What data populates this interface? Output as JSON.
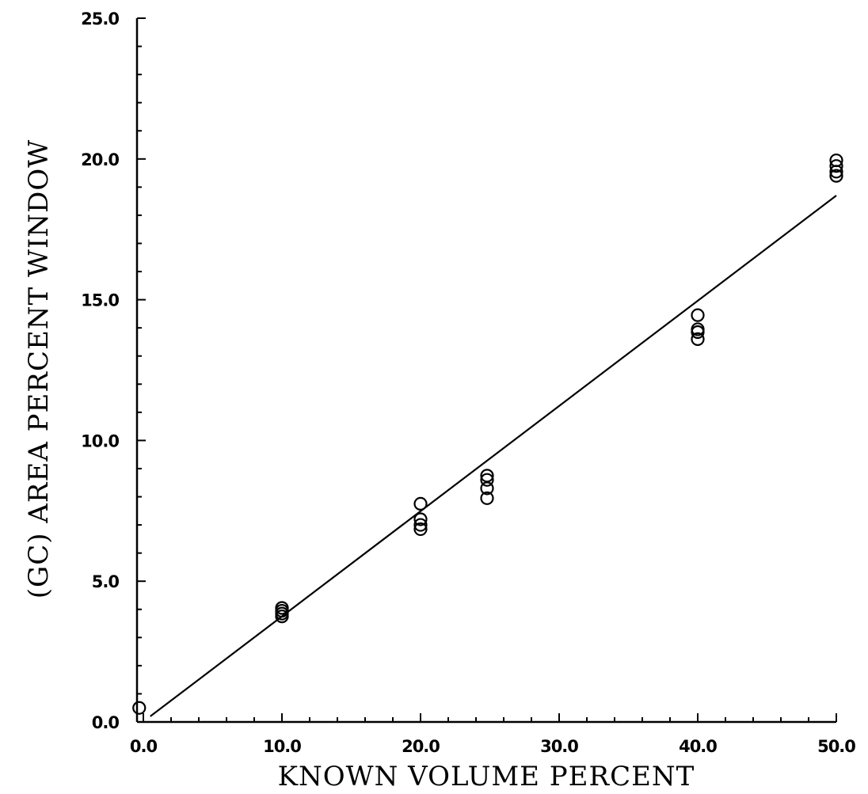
{
  "chart_data": {
    "type": "scatter",
    "title": "",
    "xlabel": "KNOWN  VOLUME PERCENT",
    "ylabel": "(GC) AREA PERCENT WINDOW",
    "xlim": [
      -0.5,
      50.0
    ],
    "ylim": [
      0.0,
      25.0
    ],
    "x_ticks": [
      0,
      10,
      20,
      30,
      40,
      50
    ],
    "x_tick_labels": [
      "0.0",
      "10.0",
      "20.0",
      "30.0",
      "40.0",
      "50.0"
    ],
    "y_ticks": [
      0,
      5,
      10,
      15,
      20,
      25
    ],
    "y_tick_labels": [
      "0.0",
      "5.0",
      "10.0",
      "15.0",
      "20.0",
      "25.0"
    ],
    "grid": false,
    "series": [
      {
        "marker": "open-circle",
        "points": [
          {
            "x": -0.3,
            "y": 0.5
          },
          {
            "x": 10.0,
            "y": 4.05
          },
          {
            "x": 10.0,
            "y": 3.95
          },
          {
            "x": 10.0,
            "y": 3.85
          },
          {
            "x": 10.0,
            "y": 3.75
          },
          {
            "x": 20.0,
            "y": 7.75
          },
          {
            "x": 20.0,
            "y": 7.2
          },
          {
            "x": 20.0,
            "y": 7.0
          },
          {
            "x": 20.0,
            "y": 6.85
          },
          {
            "x": 24.8,
            "y": 8.75
          },
          {
            "x": 24.8,
            "y": 8.6
          },
          {
            "x": 24.8,
            "y": 8.3
          },
          {
            "x": 24.8,
            "y": 7.95
          },
          {
            "x": 40.0,
            "y": 14.45
          },
          {
            "x": 40.0,
            "y": 13.95
          },
          {
            "x": 40.0,
            "y": 13.85
          },
          {
            "x": 40.0,
            "y": 13.6
          },
          {
            "x": 50.0,
            "y": 19.95
          },
          {
            "x": 50.0,
            "y": 19.75
          },
          {
            "x": 50.0,
            "y": 19.55
          },
          {
            "x": 50.0,
            "y": 19.4
          }
        ]
      },
      {
        "marker": "line",
        "points": [
          {
            "x": 0.5,
            "y": 0.2
          },
          {
            "x": 50.0,
            "y": 18.7
          }
        ]
      }
    ]
  }
}
